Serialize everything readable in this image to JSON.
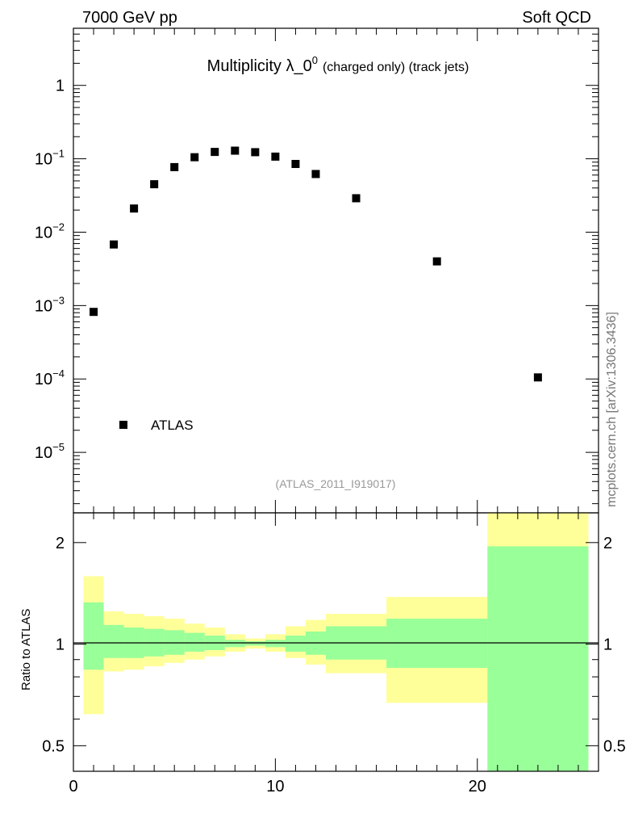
{
  "header": {
    "energy_label": "7000 GeV pp",
    "category_label": "Soft QCD"
  },
  "title": {
    "main": "Multiplicity λ_0",
    "superscript": "0",
    "suffix": "(charged only) (track jets)"
  },
  "legend": {
    "entry": "ATLAS"
  },
  "analysis_id": "(ATLAS_2011_I919017)",
  "side_label": "mcplots.cern.ch [arXiv:1306.3436]",
  "ratio_ylabel": "Ratio to ATLAS",
  "colors": {
    "band_outer": "#ffff99",
    "band_inner": "#99ff99",
    "marker": "#000000"
  },
  "chart_data": [
    {
      "type": "scatter",
      "panel": "main",
      "yscale": "log",
      "xlim": [
        0,
        26
      ],
      "ylim": [
        1.5e-06,
        6
      ],
      "y_ticks": [
        {
          "value": 1,
          "label": "1",
          "exp": ""
        },
        {
          "value": 0.1,
          "label": "10",
          "exp": "−1"
        },
        {
          "value": 0.01,
          "label": "10",
          "exp": "−2"
        },
        {
          "value": 0.001,
          "label": "10",
          "exp": "−3"
        },
        {
          "value": 0.0001,
          "label": "10",
          "exp": "−4"
        },
        {
          "value": 1e-05,
          "label": "10",
          "exp": "−5"
        }
      ],
      "series": [
        {
          "name": "ATLAS",
          "x": [
            1,
            2,
            3,
            4,
            5,
            6,
            7,
            8,
            9,
            10,
            11,
            12,
            14,
            18,
            23
          ],
          "y": [
            0.00082,
            0.0068,
            0.021,
            0.045,
            0.077,
            0.105,
            0.124,
            0.129,
            0.123,
            0.107,
            0.085,
            0.062,
            0.029,
            0.004,
            0.000105
          ]
        }
      ]
    },
    {
      "type": "area",
      "panel": "ratio",
      "ylabel": "Ratio to ATLAS",
      "yscale": "log",
      "xlim": [
        0,
        26
      ],
      "ylim": [
        0.42,
        2.45
      ],
      "reference": 1,
      "x_ticks": [
        {
          "value": 0,
          "label": "0"
        },
        {
          "value": 10,
          "label": "10"
        },
        {
          "value": 20,
          "label": "20"
        }
      ],
      "y_ticks": [
        {
          "value": 0.5,
          "label": "0.5"
        },
        {
          "value": 1,
          "label": "1"
        },
        {
          "value": 2,
          "label": "2"
        }
      ],
      "bands": [
        {
          "x_low": 0.5,
          "x_high": 1.5,
          "outer": [
            0.62,
            1.59
          ],
          "inner": [
            0.84,
            1.33
          ]
        },
        {
          "x_low": 1.5,
          "x_high": 2.5,
          "outer": [
            0.83,
            1.25
          ],
          "inner": [
            0.91,
            1.14
          ]
        },
        {
          "x_low": 2.5,
          "x_high": 3.5,
          "outer": [
            0.84,
            1.23
          ],
          "inner": [
            0.91,
            1.12
          ]
        },
        {
          "x_low": 3.5,
          "x_high": 4.5,
          "outer": [
            0.86,
            1.21
          ],
          "inner": [
            0.92,
            1.11
          ]
        },
        {
          "x_low": 4.5,
          "x_high": 5.5,
          "outer": [
            0.88,
            1.19
          ],
          "inner": [
            0.93,
            1.1
          ]
        },
        {
          "x_low": 5.5,
          "x_high": 6.5,
          "outer": [
            0.9,
            1.15
          ],
          "inner": [
            0.95,
            1.08
          ]
        },
        {
          "x_low": 6.5,
          "x_high": 7.5,
          "outer": [
            0.92,
            1.12
          ],
          "inner": [
            0.96,
            1.06
          ]
        },
        {
          "x_low": 7.5,
          "x_high": 8.5,
          "outer": [
            0.95,
            1.07
          ],
          "inner": [
            0.98,
            1.03
          ]
        },
        {
          "x_low": 8.5,
          "x_high": 9.5,
          "outer": [
            0.97,
            1.04
          ],
          "inner": [
            0.99,
            1.02
          ]
        },
        {
          "x_low": 9.5,
          "x_high": 10.5,
          "outer": [
            0.95,
            1.07
          ],
          "inner": [
            0.98,
            1.03
          ]
        },
        {
          "x_low": 10.5,
          "x_high": 11.5,
          "outer": [
            0.91,
            1.13
          ],
          "inner": [
            0.95,
            1.06
          ]
        },
        {
          "x_low": 11.5,
          "x_high": 12.5,
          "outer": [
            0.87,
            1.18
          ],
          "inner": [
            0.93,
            1.09
          ]
        },
        {
          "x_low": 12.5,
          "x_high": 15.5,
          "outer": [
            0.82,
            1.23
          ],
          "inner": [
            0.9,
            1.13
          ]
        },
        {
          "x_low": 15.5,
          "x_high": 20.5,
          "outer": [
            0.67,
            1.38
          ],
          "inner": [
            0.85,
            1.19
          ]
        },
        {
          "x_low": 20.5,
          "x_high": 25.5,
          "outer": [
            0.42,
            2.45
          ],
          "inner": [
            0.42,
            1.95
          ]
        }
      ]
    }
  ]
}
